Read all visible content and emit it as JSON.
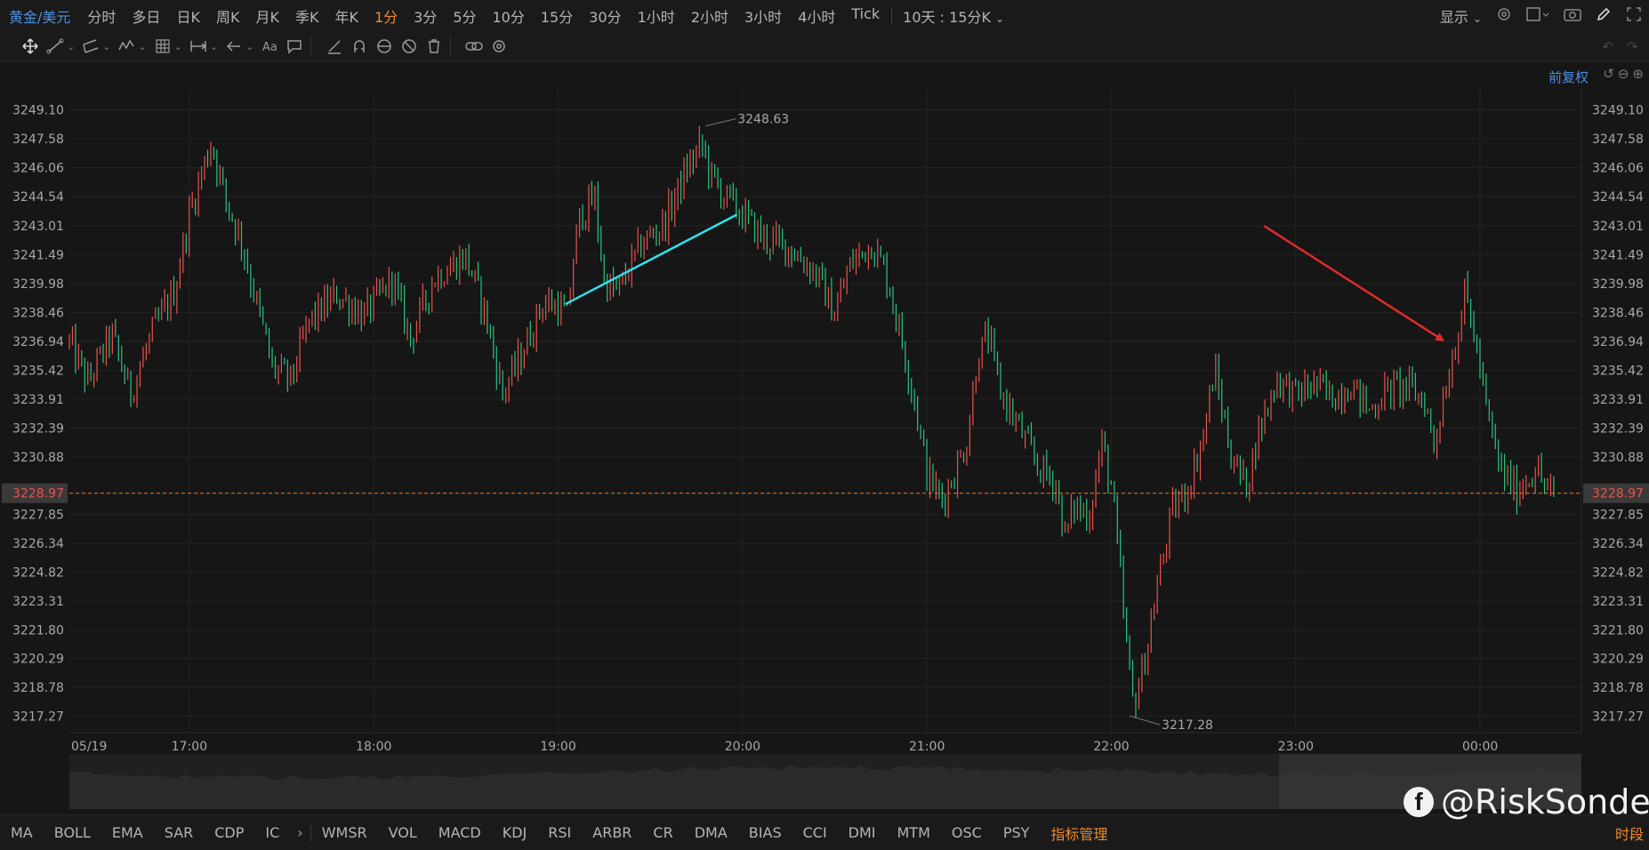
{
  "topbar": {
    "symbol": "黄金/美元",
    "timeframes": [
      "分时",
      "多日",
      "日K",
      "周K",
      "月K",
      "季K",
      "年K",
      "1分",
      "3分",
      "5分",
      "10分",
      "15分",
      "30分",
      "1小时",
      "2小时",
      "3小时",
      "4小时",
      "Tick"
    ],
    "active": "1分",
    "range": "10天 : 15分K",
    "display_label": "显示"
  },
  "adjust_label": "前复权",
  "chart_data": {
    "type": "candlestick",
    "symbol": "黄金/美元",
    "interval": "1分",
    "y_ticks": [
      3249.1,
      3247.58,
      3246.06,
      3244.54,
      3243.01,
      3241.49,
      3239.98,
      3238.46,
      3236.94,
      3235.42,
      3233.91,
      3232.39,
      3230.88,
      3228.97,
      3227.85,
      3226.34,
      3224.82,
      3223.31,
      3221.8,
      3220.29,
      3218.78,
      3217.27
    ],
    "ylim": [
      3216.4,
      3250.2
    ],
    "x_ticks": [
      "05/19",
      "17:00",
      "18:00",
      "19:00",
      "20:00",
      "21:00",
      "22:00",
      "23:00",
      "00:00"
    ],
    "x_tick_hours": [
      16.35,
      17,
      18,
      19,
      20,
      21,
      22,
      23,
      24
    ],
    "current_price": 3228.97,
    "high_label": "3248.63",
    "high": {
      "time_h": 19.8,
      "price": 3248.63
    },
    "low_label": "3217.28",
    "low": {
      "time_h": 22.1,
      "price": 3217.28
    },
    "series": [
      {
        "name": "",
        "close_path": [
          [
            16.35,
            3236.9
          ],
          [
            16.45,
            3234.8
          ],
          [
            16.58,
            3237.3
          ],
          [
            16.68,
            3234.2
          ],
          [
            16.8,
            3237.4
          ],
          [
            16.92,
            3239.6
          ],
          [
            17.0,
            3243.6
          ],
          [
            17.08,
            3246.2
          ],
          [
            17.12,
            3247.4
          ],
          [
            17.2,
            3244.3
          ],
          [
            17.28,
            3242.3
          ],
          [
            17.38,
            3238.4
          ],
          [
            17.45,
            3235.6
          ],
          [
            17.55,
            3234.9
          ],
          [
            17.65,
            3238.0
          ],
          [
            17.8,
            3239.4
          ],
          [
            17.95,
            3238.3
          ],
          [
            18.1,
            3240.2
          ],
          [
            18.2,
            3237.1
          ],
          [
            18.33,
            3240.3
          ],
          [
            18.5,
            3241.4
          ],
          [
            18.6,
            3238.6
          ],
          [
            18.7,
            3234.2
          ],
          [
            18.8,
            3236.2
          ],
          [
            18.92,
            3239.0
          ],
          [
            19.0,
            3238.8
          ],
          [
            19.05,
            3238.2
          ],
          [
            19.08,
            3241.0
          ],
          [
            19.12,
            3243.6
          ],
          [
            19.2,
            3244.4
          ],
          [
            19.25,
            3240.1
          ],
          [
            19.32,
            3239.5
          ],
          [
            19.45,
            3242.0
          ],
          [
            19.58,
            3243.2
          ],
          [
            19.7,
            3246.0
          ],
          [
            19.78,
            3247.3
          ],
          [
            19.83,
            3245.6
          ],
          [
            19.9,
            3244.6
          ],
          [
            20.0,
            3243.6
          ],
          [
            20.12,
            3242.3
          ],
          [
            20.25,
            3241.9
          ],
          [
            20.4,
            3240.5
          ],
          [
            20.5,
            3238.4
          ],
          [
            20.58,
            3240.9
          ],
          [
            20.7,
            3242.1
          ],
          [
            20.78,
            3240.5
          ],
          [
            20.85,
            3237.6
          ],
          [
            20.93,
            3234.1
          ],
          [
            21.0,
            3230.0
          ],
          [
            21.08,
            3228.6
          ],
          [
            21.15,
            3230.0
          ],
          [
            21.22,
            3231.8
          ],
          [
            21.27,
            3235.9
          ],
          [
            21.33,
            3237.3
          ],
          [
            21.4,
            3234.3
          ],
          [
            21.5,
            3232.4
          ],
          [
            21.6,
            3230.4
          ],
          [
            21.7,
            3229.5
          ],
          [
            21.75,
            3226.7
          ],
          [
            21.8,
            3228.3
          ],
          [
            21.88,
            3227.8
          ],
          [
            21.95,
            3231.6
          ],
          [
            22.0,
            3229.4
          ],
          [
            22.04,
            3225.6
          ],
          [
            22.08,
            3221.2
          ],
          [
            22.12,
            3217.8
          ],
          [
            22.18,
            3220.1
          ],
          [
            22.25,
            3224.1
          ],
          [
            22.33,
            3228.0
          ],
          [
            22.42,
            3229.3
          ],
          [
            22.5,
            3232.0
          ],
          [
            22.56,
            3235.5
          ],
          [
            22.65,
            3231.0
          ],
          [
            22.73,
            3229.3
          ],
          [
            22.8,
            3232.2
          ],
          [
            22.9,
            3235.0
          ],
          [
            23.0,
            3234.1
          ],
          [
            23.1,
            3234.7
          ],
          [
            23.2,
            3234.0
          ],
          [
            23.3,
            3234.7
          ],
          [
            23.4,
            3233.3
          ],
          [
            23.5,
            3234.4
          ],
          [
            23.6,
            3234.6
          ],
          [
            23.7,
            3233.8
          ],
          [
            23.75,
            3231.5
          ],
          [
            23.8,
            3234.0
          ],
          [
            23.87,
            3237.0
          ],
          [
            23.92,
            3239.5
          ],
          [
            23.98,
            3236.7
          ],
          [
            24.05,
            3232.5
          ],
          [
            24.12,
            3230.0
          ],
          [
            24.2,
            3229.1
          ],
          [
            24.3,
            3230.3
          ],
          [
            24.35,
            3229.4
          ],
          [
            24.4,
            3228.7
          ]
        ]
      }
    ],
    "annotations": [
      {
        "type": "trendline",
        "color": "#2ce3ee",
        "from": {
          "time_h": 19.04,
          "price": 3238.9
        },
        "to": {
          "time_h": 19.97,
          "price": 3243.6
        }
      },
      {
        "type": "arrow",
        "color": "#e12b2b",
        "from": {
          "time_h": 22.83,
          "price": 3243.0
        },
        "to": {
          "time_h": 23.8,
          "price": 3237.0
        }
      }
    ],
    "colors": {
      "up": "#e8524a",
      "down": "#29c47e",
      "price_line": "#e6762f",
      "grid": "#222222",
      "axis_text": "#a8a8a8",
      "price_tag": "#3a3a3a",
      "price_tag_text": "#e8524a"
    }
  },
  "bottombar": {
    "indicators_left": [
      "MA",
      "BOLL",
      "EMA",
      "SAR",
      "CDP",
      "IC"
    ],
    "indicators_right": [
      "WMSR",
      "VOL",
      "MACD",
      "KDJ",
      "RSI",
      "ARBR",
      "CR",
      "DMA",
      "BIAS",
      "CCI",
      "DMI",
      "MTM",
      "OSC",
      "PSY"
    ],
    "manage_label": "指标管理",
    "period_label": "时段"
  },
  "watermark": {
    "icon": "facebook-icon",
    "text": "@RiskSonder"
  },
  "tools": [
    "move-icon",
    "line-tool-icon",
    "channel-tool-icon",
    "wave-tool-icon",
    "grid-tool-icon",
    "measure-tool-icon",
    "arrow-tool-icon",
    "text-tool-icon",
    "comment-tool-icon",
    "brush-tool-icon",
    "magnet-icon",
    "hide-tool-icon",
    "visibility-icon",
    "delete-icon",
    "link-icon",
    "settings-icon"
  ]
}
